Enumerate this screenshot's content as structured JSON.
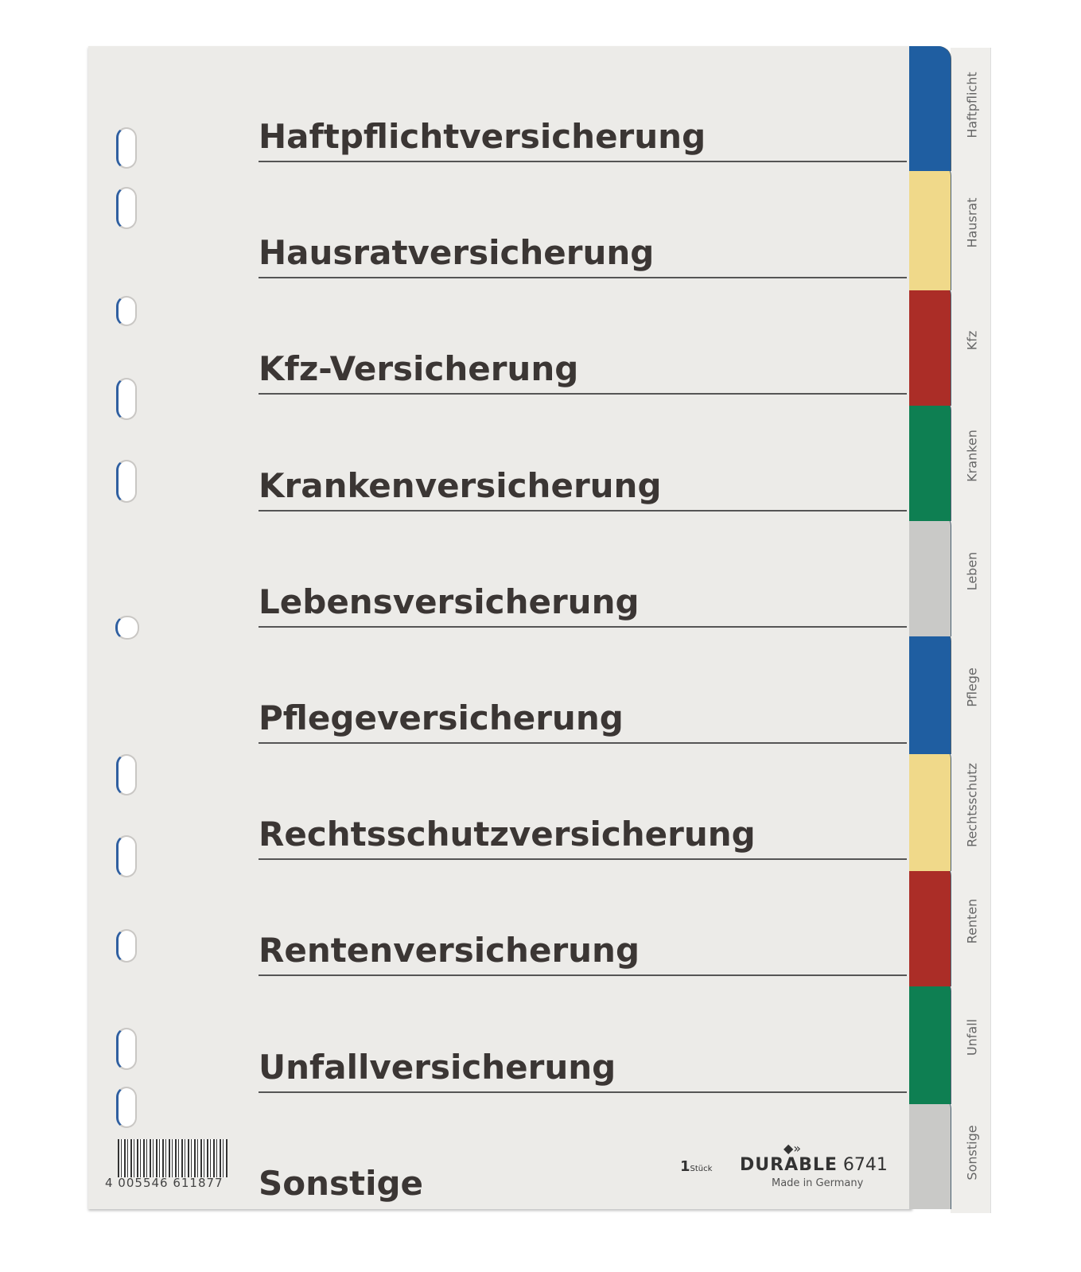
{
  "sections": [
    "Haftpflichtversicherung",
    "Hausratversicherung",
    "Kfz-Versicherung",
    "Krankenversicherung",
    "Lebensversicherung",
    "Pflegeversicherung",
    "Rechtsschutzversicherung",
    "Rentenversicherung",
    "Unfallversicherung",
    "Sonstige"
  ],
  "tabs": [
    {
      "label": "Haftpflicht",
      "color": "#1f5ea1"
    },
    {
      "label": "Hausrat",
      "color": "#f0d98a"
    },
    {
      "label": "Kfz",
      "color": "#ab2d27"
    },
    {
      "label": "Kranken",
      "color": "#0e7f52"
    },
    {
      "label": "Leben",
      "color": "#c9c9c7"
    },
    {
      "label": "Pflege",
      "color": "#1f5ea1"
    },
    {
      "label": "Rechtsschutz",
      "color": "#f0d98a"
    },
    {
      "label": "Renten",
      "color": "#ab2d27"
    },
    {
      "label": "Unfall",
      "color": "#0e7f52"
    },
    {
      "label": "Sonstige",
      "color": "#c9c9c7"
    }
  ],
  "footer": {
    "barcode_number": "4 005546 611877",
    "quantity": "1",
    "quantity_unit": "Stück",
    "brand": "DURABLE",
    "model": "6741",
    "origin": "Made in Germany"
  }
}
